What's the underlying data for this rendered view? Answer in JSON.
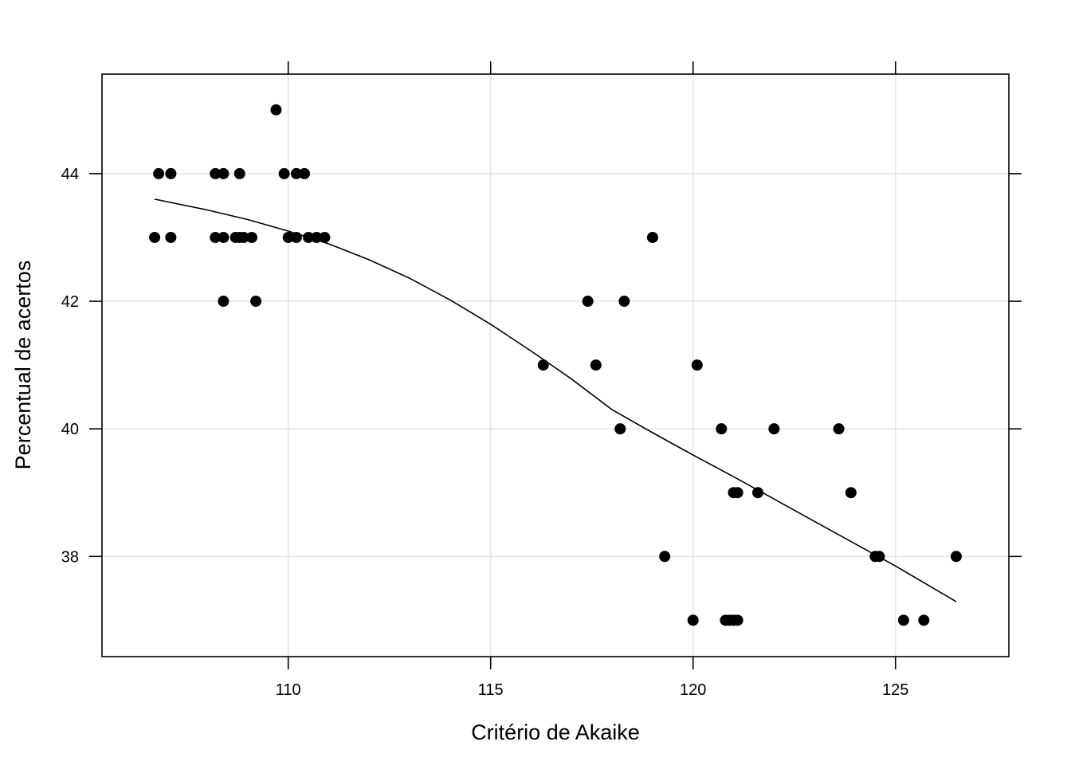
{
  "chart_data": {
    "type": "scatter",
    "xlabel": "Critério de Akaike",
    "ylabel": "Percentual de acertos",
    "xlim": [
      105.4,
      127.8
    ],
    "ylim": [
      36.43,
      45.56
    ],
    "xticks": [
      110,
      115,
      120,
      125
    ],
    "yticks": [
      38,
      40,
      42,
      44
    ],
    "grid": true,
    "colors": {
      "points": "#000000",
      "grid": "#e6e6e6",
      "frame": "#000000",
      "curve": "#000000"
    },
    "points": [
      {
        "x": 106.7,
        "y": 43
      },
      {
        "x": 106.8,
        "y": 44
      },
      {
        "x": 107.1,
        "y": 44
      },
      {
        "x": 107.1,
        "y": 43
      },
      {
        "x": 108.2,
        "y": 43
      },
      {
        "x": 108.2,
        "y": 44
      },
      {
        "x": 108.4,
        "y": 44
      },
      {
        "x": 108.4,
        "y": 43
      },
      {
        "x": 108.4,
        "y": 42
      },
      {
        "x": 108.7,
        "y": 43
      },
      {
        "x": 108.8,
        "y": 43
      },
      {
        "x": 108.8,
        "y": 44
      },
      {
        "x": 108.9,
        "y": 43
      },
      {
        "x": 109.1,
        "y": 43
      },
      {
        "x": 109.2,
        "y": 42
      },
      {
        "x": 109.7,
        "y": 45
      },
      {
        "x": 109.9,
        "y": 44
      },
      {
        "x": 110.0,
        "y": 43
      },
      {
        "x": 110.2,
        "y": 44
      },
      {
        "x": 110.2,
        "y": 43
      },
      {
        "x": 110.4,
        "y": 44
      },
      {
        "x": 110.5,
        "y": 43
      },
      {
        "x": 110.7,
        "y": 43
      },
      {
        "x": 110.9,
        "y": 43
      },
      {
        "x": 116.3,
        "y": 41
      },
      {
        "x": 117.4,
        "y": 42
      },
      {
        "x": 117.6,
        "y": 41
      },
      {
        "x": 118.2,
        "y": 40
      },
      {
        "x": 118.3,
        "y": 42
      },
      {
        "x": 119.0,
        "y": 43
      },
      {
        "x": 119.3,
        "y": 38
      },
      {
        "x": 120.0,
        "y": 37
      },
      {
        "x": 120.1,
        "y": 41
      },
      {
        "x": 120.7,
        "y": 40
      },
      {
        "x": 120.8,
        "y": 37
      },
      {
        "x": 120.9,
        "y": 37
      },
      {
        "x": 121.0,
        "y": 39
      },
      {
        "x": 121.0,
        "y": 37
      },
      {
        "x": 121.1,
        "y": 37
      },
      {
        "x": 121.1,
        "y": 39
      },
      {
        "x": 121.6,
        "y": 39
      },
      {
        "x": 122.0,
        "y": 40
      },
      {
        "x": 123.6,
        "y": 40
      },
      {
        "x": 123.9,
        "y": 39
      },
      {
        "x": 124.5,
        "y": 38
      },
      {
        "x": 124.6,
        "y": 38
      },
      {
        "x": 125.2,
        "y": 37
      },
      {
        "x": 125.7,
        "y": 37
      },
      {
        "x": 126.5,
        "y": 38
      }
    ],
    "smooth_curve": [
      {
        "x": 106.7,
        "y": 43.6
      },
      {
        "x": 108.0,
        "y": 43.43
      },
      {
        "x": 109.0,
        "y": 43.28
      },
      {
        "x": 110.0,
        "y": 43.1
      },
      {
        "x": 111.0,
        "y": 42.9
      },
      {
        "x": 112.0,
        "y": 42.65
      },
      {
        "x": 113.0,
        "y": 42.36
      },
      {
        "x": 114.0,
        "y": 42.02
      },
      {
        "x": 115.0,
        "y": 41.64
      },
      {
        "x": 116.0,
        "y": 41.22
      },
      {
        "x": 117.0,
        "y": 40.78
      },
      {
        "x": 118.0,
        "y": 40.3
      },
      {
        "x": 119.0,
        "y": 39.94
      },
      {
        "x": 120.0,
        "y": 39.59
      },
      {
        "x": 121.0,
        "y": 39.25
      },
      {
        "x": 122.0,
        "y": 38.9
      },
      {
        "x": 123.0,
        "y": 38.55
      },
      {
        "x": 124.0,
        "y": 38.2
      },
      {
        "x": 125.0,
        "y": 37.85
      },
      {
        "x": 126.5,
        "y": 37.29
      }
    ]
  }
}
